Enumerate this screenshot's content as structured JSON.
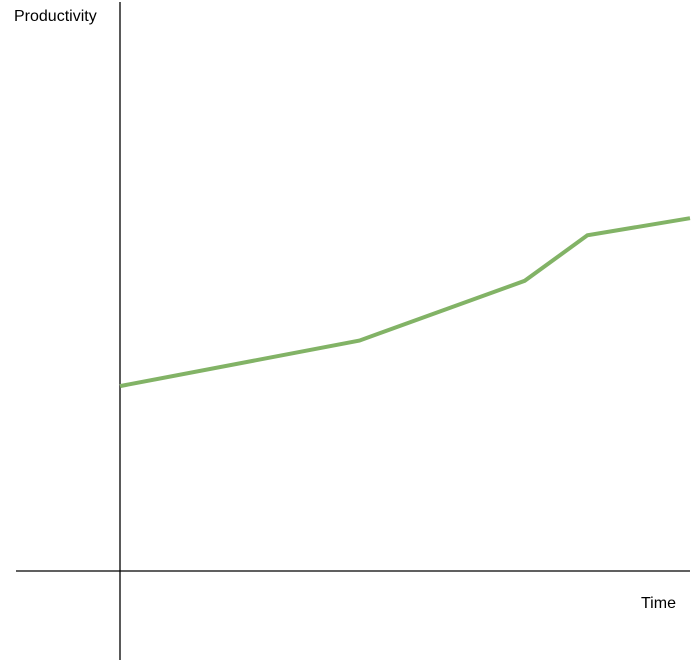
{
  "chart_data": {
    "type": "line",
    "title": "",
    "xlabel": "Time",
    "ylabel": "Productivity",
    "ticks": false,
    "grid": false,
    "xlim": [
      0,
      100
    ],
    "ylim": [
      0,
      100
    ],
    "series": [
      {
        "color": "#82b366",
        "x": [
          0,
          42,
          71,
          82,
          100
        ],
        "y": [
          32.5,
          40.5,
          51,
          59,
          62
        ]
      }
    ]
  }
}
